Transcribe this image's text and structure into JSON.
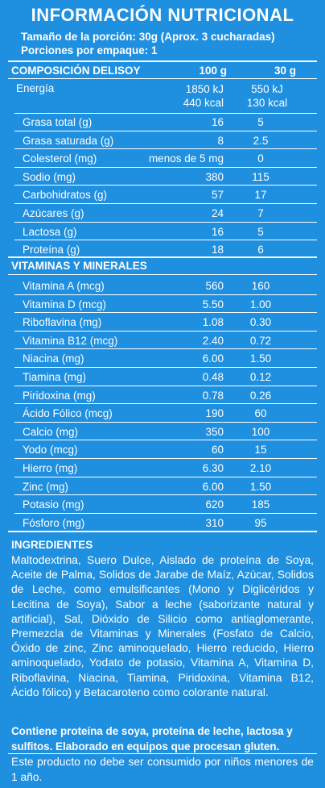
{
  "title": "INFORMACIÓN NUTRICIONAL",
  "serving_size": "Tamaño de la porción: 30g (Aprox. 3 cucharadas)",
  "servings_per_container": "Porciones por empaque: 1",
  "composition": {
    "header": "COMPOSICIÓN DELISOY",
    "col_100g": "100 g",
    "col_30g": "30 g",
    "energy": {
      "label": "Energía",
      "v100_kj": "1850 kJ",
      "v100_kcal": "440 kcal",
      "v30_kj": "550 kJ",
      "v30_kcal": "130 kcal"
    },
    "rows": [
      {
        "label": "Grasa total (g)",
        "v100": "16",
        "v30": "5"
      },
      {
        "label": "Grasa saturada (g)",
        "v100": "8",
        "v30": "2.5"
      },
      {
        "label": "Colesterol (mg)",
        "v100": "menos de 5 mg",
        "v30": "0"
      },
      {
        "label": "Sodio (mg)",
        "v100": "380",
        "v30": "115"
      },
      {
        "label": "Carbohidratos (g)",
        "v100": "57",
        "v30": "17"
      },
      {
        "label": "Azúcares (g)",
        "v100": "24",
        "v30": "7"
      },
      {
        "label": "Lactosa (g)",
        "v100": "16",
        "v30": "5"
      },
      {
        "label": "Proteína (g)",
        "v100": "18",
        "v30": "6"
      }
    ]
  },
  "vitamins": {
    "header": "VITAMINAS Y MINERALES",
    "rows": [
      {
        "label": "Vitamina A (mcg)",
        "v100": "560",
        "v30": "160"
      },
      {
        "label": "Vitamina D (mcg)",
        "v100": "5.50",
        "v30": "1.00"
      },
      {
        "label": "Riboflavina (mg)",
        "v100": "1.08",
        "v30": "0.30"
      },
      {
        "label": "Vitamina B12 (mcg)",
        "v100": "2.40",
        "v30": "0.72"
      },
      {
        "label": "Niacina (mg)",
        "v100": "6.00",
        "v30": "1.50"
      },
      {
        "label": "Tiamina (mg)",
        "v100": "0.48",
        "v30": "0.12"
      },
      {
        "label": "Piridoxina (mg)",
        "v100": "0.78",
        "v30": "0.26"
      },
      {
        "label": "Ácido Fólico (mcg)",
        "v100": "190",
        "v30": "60"
      },
      {
        "label": "Calcio (mg)",
        "v100": "350",
        "v30": "100"
      },
      {
        "label": "Yodo (mcg)",
        "v100": "60",
        "v30": "15"
      },
      {
        "label": "Hierro (mg)",
        "v100": "6.30",
        "v30": "2.10"
      },
      {
        "label": "Zinc (mg)",
        "v100": "6.00",
        "v30": "1.50"
      },
      {
        "label": "Potasio (mg)",
        "v100": "620",
        "v30": "185"
      },
      {
        "label": "Fósforo (mg)",
        "v100": "310",
        "v30": "95"
      }
    ]
  },
  "ingredients": {
    "title": "INGREDIENTES",
    "text": "Maltodextrina, Suero Dulce, Aislado de proteína de Soya, Aceite de Palma, Solidos de Jarabe de Maíz, Azúcar, Solidos de Leche, como emulsificantes (Mono y Diglicéridos y Lecitina de Soya), Sabor a leche (saborizante natural y artificial), Sal, Dióxido de Silicio como antiaglomerante, Premezcla de Vitaminas y Minerales (Fosfato de Calcio, Óxido de zinc, Zinc aminoquelado, Hierro reducido, Hierro aminoquelado, Yodato de potasio, Vitamina A, Vitamina D, Riboflavina, Niacina, Tiamina, Piridoxina, Vitamina B12, Ácido fólico) y Betacaroteno como colorante natural.",
    "allergen": "Contiene proteína de soya, proteína de leche, lactosa y sulfitos. Elaborado en equipos que procesan gluten.",
    "warning": "Este producto no debe ser consumido por niños menores de 1 año."
  }
}
